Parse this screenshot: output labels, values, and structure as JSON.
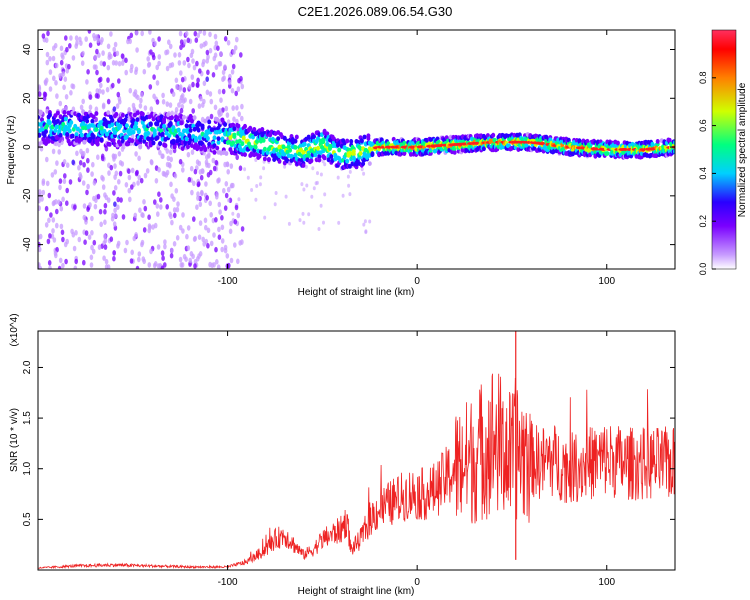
{
  "figure": {
    "title": "C2E1.2026.089.06.54.G30"
  },
  "chart_data": [
    {
      "type": "heatmap",
      "xlabel": "Height of straight line (km)",
      "ylabel": "Frequency (Hz)",
      "xlim": [
        -200,
        136
      ],
      "ylim": [
        -50,
        48
      ],
      "x_ticks": [
        -100,
        0,
        100
      ],
      "y_ticks": [
        -40,
        -20,
        0,
        20,
        40
      ],
      "colorbar": {
        "label": "Normalized spectral amplitude",
        "range": [
          0,
          1
        ],
        "ticks": [
          0.0,
          0.2,
          0.4,
          0.6,
          0.8
        ],
        "tick_labels": [
          "0.0",
          "0.2",
          "0.4",
          "0.6",
          "0.8"
        ],
        "colormap": [
          "#ffffff",
          "#c79bff",
          "#7a00ff",
          "#2a00ff",
          "#00d0ff",
          "#00ff80",
          "#d0ff00",
          "#ff8000",
          "#ff0000",
          "#ff3060"
        ]
      },
      "ridge": {
        "x": [
          -200,
          -180,
          -160,
          -140,
          -120,
          -100,
          -80,
          -60,
          -50,
          -40,
          -30,
          -20,
          0,
          20,
          40,
          60,
          80,
          100,
          120,
          136
        ],
        "y": [
          8,
          8,
          7,
          7,
          6,
          4,
          1,
          -2,
          1,
          -3,
          -2,
          0,
          0,
          1,
          2,
          2,
          0,
          -1,
          -1,
          0
        ]
      },
      "noise_band_x": [
        -200,
        -100
      ],
      "grid": false
    },
    {
      "type": "line",
      "xlabel": "Height of straight line (km)",
      "ylabel": "SNR (10 * v/v)",
      "y_multiplier": "(x10^4)",
      "xlim": [
        -200,
        136
      ],
      "ylim": [
        0,
        23600
      ],
      "x_ticks": [
        -100,
        0,
        100
      ],
      "y_ticks": [
        5000,
        10000,
        15000,
        20000
      ],
      "y_tick_labels": [
        "0.5",
        "1.0",
        "1.5",
        "2.0"
      ],
      "series": [
        {
          "color": "#ee2222",
          "x": [
            -200,
            -180,
            -160,
            -140,
            -120,
            -100,
            -90,
            -80,
            -75,
            -70,
            -65,
            -60,
            -55,
            -50,
            -45,
            -40,
            -37,
            -35,
            -30,
            -25,
            -20,
            -15,
            -10,
            -5,
            0,
            5,
            10,
            15,
            20,
            25,
            30,
            35,
            40,
            45,
            50,
            52,
            55,
            60,
            65,
            70,
            75,
            80,
            90,
            100,
            110,
            120,
            130,
            136
          ],
          "y": [
            200,
            400,
            500,
            400,
            300,
            300,
            800,
            2000,
            3000,
            3500,
            2500,
            1500,
            2000,
            3000,
            3500,
            4000,
            5000,
            2000,
            3000,
            5000,
            6000,
            6500,
            7000,
            7500,
            7500,
            7500,
            8000,
            9000,
            10000,
            10500,
            11000,
            12000,
            13000,
            12000,
            11000,
            12000,
            11500,
            11000,
            10500,
            11000,
            10500,
            10000,
            10500,
            11000,
            10500,
            10500,
            10500,
            10500
          ]
        }
      ],
      "grid": false
    }
  ]
}
